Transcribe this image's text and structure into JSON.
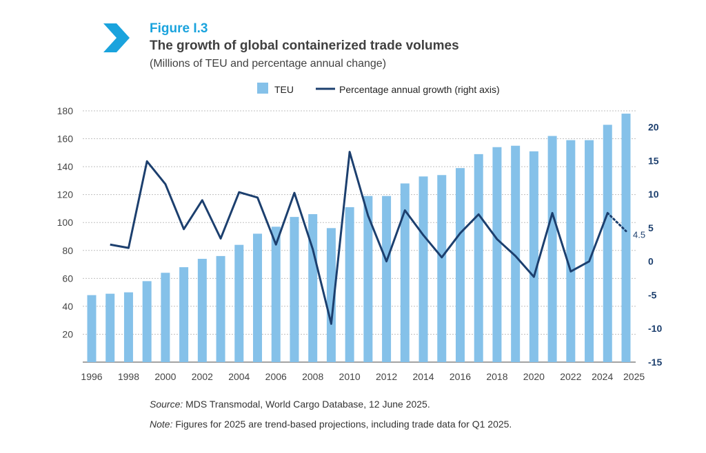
{
  "header": {
    "figure_label": "Figure I.3",
    "title": "The growth of global containerized trade volumes",
    "subtitle": "(Millions of TEU and percentage annual change)"
  },
  "footer": {
    "source_prefix": "Source:",
    "source_text": " MDS Transmodal, World Cargo Database, 12 June 2025.",
    "note_prefix": "Note:",
    "note_text": " Figures for 2025 are trend-based projections, including trade data for Q1 2025."
  },
  "colors": {
    "accent": "#1aa3dd",
    "bar": "#85c1e9",
    "line": "#1c3f6e",
    "grid": "#bfbfbf"
  },
  "chart_data": {
    "type": "bar",
    "x": [
      1996,
      1997,
      1998,
      1999,
      2000,
      2001,
      2002,
      2003,
      2004,
      2005,
      2006,
      2007,
      2008,
      2009,
      2010,
      2011,
      2012,
      2013,
      2014,
      2015,
      2016,
      2017,
      2018,
      2019,
      2020,
      2021,
      2022,
      2023,
      2024,
      2025
    ],
    "x_tick_labels": [
      "1996",
      "1998",
      "2000",
      "2002",
      "2004",
      "2006",
      "2008",
      "2010",
      "2012",
      "2014",
      "2016",
      "2018",
      "2020",
      "2022",
      "2024",
      "2025"
    ],
    "legend": {
      "placement": "top-center",
      "bar_label": "TEU",
      "line_label": "Percentage annual growth (right axis)"
    },
    "left_axis": {
      "ylim": [
        0,
        180
      ],
      "ticks": [
        20,
        40,
        60,
        80,
        100,
        120,
        140,
        160,
        180
      ]
    },
    "right_axis": {
      "ylim": [
        -15,
        22
      ],
      "ticks": [
        -15,
        -10,
        -5,
        0,
        5,
        10,
        15,
        20
      ]
    },
    "grid": true,
    "series": [
      {
        "name": "TEU",
        "type": "bar",
        "axis": "left",
        "values": [
          48,
          49,
          50,
          58,
          64,
          68,
          74,
          76,
          84,
          92,
          97,
          104,
          106,
          96,
          111,
          119,
          119,
          128,
          133,
          134,
          139,
          149,
          154,
          155,
          151,
          162,
          159,
          159,
          170,
          178
        ]
      },
      {
        "name": "Percentage annual growth (right axis)",
        "type": "line",
        "axis": "right",
        "values": [
          null,
          2.5,
          2.0,
          14.9,
          11.5,
          4.8,
          9.1,
          3.4,
          10.3,
          9.5,
          2.5,
          10.2,
          1.8,
          -9.3,
          16.3,
          6.8,
          0.0,
          7.6,
          3.9,
          0.6,
          4.2,
          7.0,
          3.3,
          0.8,
          -2.3,
          7.2,
          -1.5,
          0.0,
          7.2,
          4.5
        ],
        "projection_from_index": 28
      }
    ],
    "annotations": [
      {
        "label": "4.5",
        "x": 2025,
        "y": 4.5,
        "axis": "right"
      }
    ]
  }
}
